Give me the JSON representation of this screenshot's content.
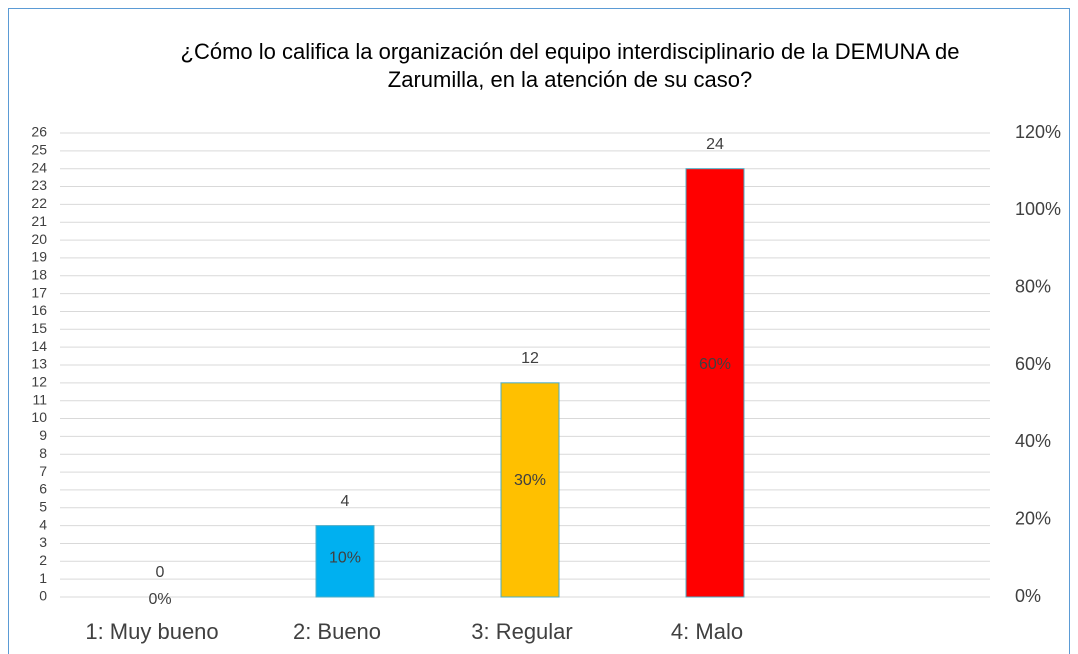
{
  "chart_data": {
    "type": "bar",
    "title": "¿Cómo lo califica la organización del equipo interdisciplinario de la DEMUNA de Zarumilla, en la atención de su caso?",
    "categories": [
      "1: Muy bueno",
      "2: Bueno",
      "3: Regular",
      "4: Malo"
    ],
    "series": [
      {
        "values": [
          0,
          4,
          12,
          24
        ],
        "colors": [
          "#ffffff",
          "#00b0f0",
          "#ffc000",
          "#ff0000"
        ]
      },
      {
        "axis": "y2",
        "values": [
          0,
          10,
          30,
          60
        ],
        "value_labels": [
          "0%",
          "10%",
          "30%",
          "60%"
        ]
      }
    ],
    "ylim": [
      0,
      26
    ],
    "yticks": [
      0,
      1,
      2,
      3,
      4,
      5,
      6,
      7,
      8,
      9,
      10,
      11,
      12,
      13,
      14,
      15,
      16,
      17,
      18,
      19,
      20,
      21,
      22,
      23,
      24,
      25,
      26
    ],
    "y2lim": [
      0,
      120
    ],
    "y2ticks": [
      {
        "value": 0,
        "label": "0%"
      },
      {
        "value": 20,
        "label": "20%"
      },
      {
        "value": 40,
        "label": "40%"
      },
      {
        "value": 60,
        "label": "60%"
      },
      {
        "value": 80,
        "label": "80%"
      },
      {
        "value": 100,
        "label": "100%"
      },
      {
        "value": 120,
        "label": "120%"
      }
    ],
    "grid": true
  }
}
